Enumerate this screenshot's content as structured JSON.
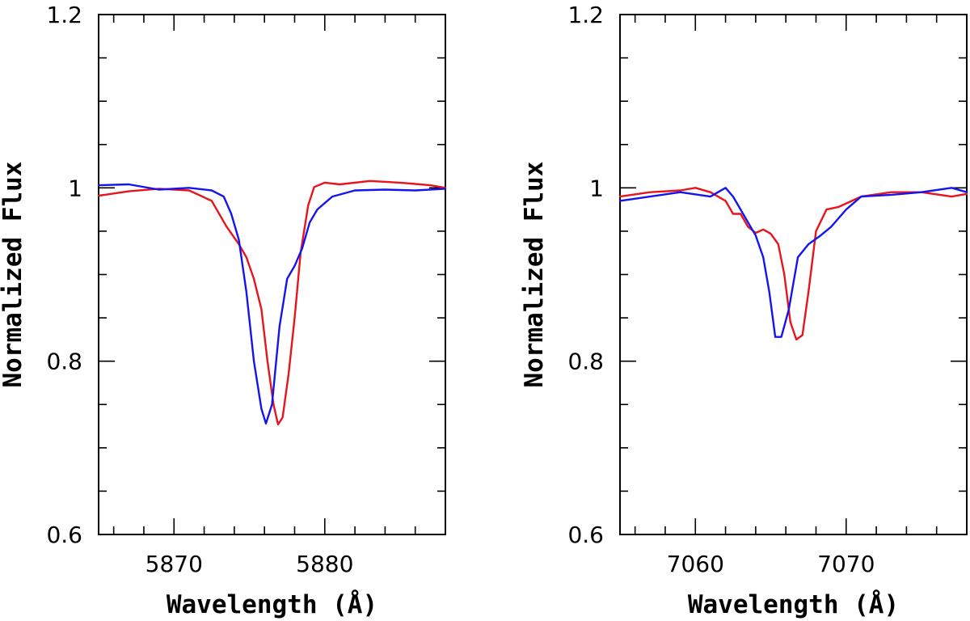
{
  "chart_data": [
    {
      "type": "line",
      "title": "",
      "xlabel": "Wavelength (Å)",
      "ylabel": "Normalized Flux",
      "xlim": [
        5865,
        5888
      ],
      "ylim": [
        0.6,
        1.2
      ],
      "xticks": [
        5870,
        5880
      ],
      "xtick_labels": [
        "5870",
        "5880"
      ],
      "yticks": [
        0.6,
        0.8,
        1.0,
        1.2
      ],
      "ytick_labels": [
        "0.6",
        "0.8",
        "1",
        "1.2"
      ],
      "colors": {
        "red": "#e8141b",
        "blue": "#1414f0"
      },
      "series": [
        {
          "name": "red",
          "color": "#e8141b",
          "x": [
            5865,
            5867,
            5869,
            5871,
            5872.5,
            5873.5,
            5874.3,
            5874.8,
            5875.3,
            5875.8,
            5876.2,
            5876.6,
            5876.9,
            5877.2,
            5877.6,
            5878.0,
            5878.4,
            5878.9,
            5879.3,
            5880.0,
            5881.0,
            5883.0,
            5885.0,
            5887.0,
            5888.0
          ],
          "y": [
            0.991,
            0.996,
            0.999,
            0.997,
            0.985,
            0.955,
            0.935,
            0.92,
            0.895,
            0.86,
            0.8,
            0.75,
            0.727,
            0.735,
            0.785,
            0.85,
            0.925,
            0.98,
            1.001,
            1.006,
            1.004,
            1.008,
            1.006,
            1.003,
            1.0
          ]
        },
        {
          "name": "blue",
          "color": "#1414f0",
          "x": [
            5865,
            5867,
            5869,
            5871,
            5872.5,
            5873.3,
            5873.8,
            5874.3,
            5874.8,
            5875.3,
            5875.8,
            5876.1,
            5876.5,
            5877.0,
            5877.5,
            5878.0,
            5878.5,
            5879.0,
            5879.5,
            5880.5,
            5882.0,
            5884.0,
            5886.0,
            5888.0
          ],
          "y": [
            1.003,
            1.004,
            0.998,
            1.0,
            0.997,
            0.99,
            0.97,
            0.94,
            0.88,
            0.8,
            0.745,
            0.728,
            0.75,
            0.84,
            0.895,
            0.91,
            0.93,
            0.96,
            0.975,
            0.99,
            0.997,
            0.998,
            0.997,
            0.999
          ]
        }
      ]
    },
    {
      "type": "line",
      "title": "",
      "xlabel": "Wavelength (Å)",
      "ylabel": "Normalized Flux",
      "xlim": [
        7055,
        7078
      ],
      "ylim": [
        0.6,
        1.2
      ],
      "xticks": [
        7060,
        7070
      ],
      "xtick_labels": [
        "7060",
        "7070"
      ],
      "yticks": [
        0.6,
        0.8,
        1.0,
        1.2
      ],
      "ytick_labels": [
        "0.6",
        "0.8",
        "1",
        "1.2"
      ],
      "colors": {
        "red": "#e8141b",
        "blue": "#1414f0"
      },
      "series": [
        {
          "name": "red",
          "color": "#e8141b",
          "x": [
            7055,
            7057,
            7059,
            7060,
            7061,
            7062,
            7062.5,
            7063,
            7063.5,
            7064,
            7064.5,
            7065,
            7065.5,
            7065.9,
            7066.3,
            7066.7,
            7067.1,
            7067.5,
            7068.0,
            7068.7,
            7069.5,
            7071,
            7073,
            7075,
            7077,
            7078
          ],
          "y": [
            0.99,
            0.995,
            0.997,
            1.0,
            0.995,
            0.985,
            0.97,
            0.97,
            0.955,
            0.948,
            0.952,
            0.947,
            0.935,
            0.9,
            0.845,
            0.825,
            0.83,
            0.88,
            0.95,
            0.975,
            0.978,
            0.99,
            0.995,
            0.995,
            0.99,
            0.993
          ]
        },
        {
          "name": "blue",
          "color": "#1414f0",
          "x": [
            7055,
            7057,
            7059,
            7061,
            7062,
            7062.5,
            7063,
            7063.5,
            7064,
            7064.5,
            7064.9,
            7065.3,
            7065.7,
            7066.2,
            7066.8,
            7067.5,
            7068.3,
            7069,
            7070,
            7071,
            7073,
            7075,
            7077,
            7078
          ],
          "y": [
            0.985,
            0.99,
            0.995,
            0.99,
            1.0,
            0.99,
            0.975,
            0.96,
            0.945,
            0.92,
            0.88,
            0.828,
            0.828,
            0.86,
            0.92,
            0.935,
            0.945,
            0.955,
            0.975,
            0.99,
            0.992,
            0.995,
            1.0,
            0.995
          ]
        }
      ]
    }
  ]
}
